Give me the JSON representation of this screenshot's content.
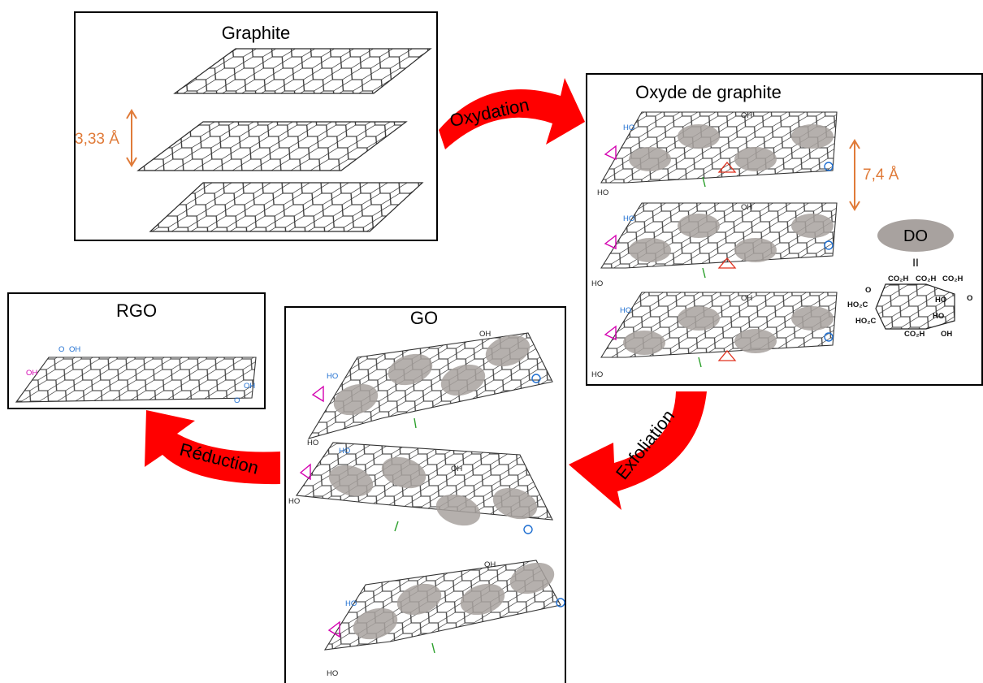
{
  "boxes": {
    "graphite": {
      "title": "Graphite",
      "spacing_label": "3,33 Å"
    },
    "graphite_oxide": {
      "title": "Oxyde de graphite",
      "spacing_label": "7,4 Å"
    },
    "go": {
      "title": "GO"
    },
    "rgo": {
      "title": "RGO"
    }
  },
  "arrows": {
    "oxidation": "Oxydation",
    "exfoliation": "Exfoliation",
    "reduction": "Réduction"
  },
  "legend": {
    "ellipse_label": "DO",
    "equals": "II",
    "groups": [
      "CO₂H",
      "CO₂H",
      "CO₂H",
      "HO₂C",
      "HO₂C",
      "CO₂H",
      "HO",
      "HO",
      "O",
      "O",
      "OH"
    ]
  },
  "groups": {
    "oh": "OH",
    "ho": "HO",
    "o": "O"
  },
  "colors": {
    "arrow": "#ff0000",
    "spacing": "#e07b39",
    "blue_group": "#1f6fd1",
    "red_group": "#e0301e",
    "magenta_group": "#d400b0",
    "green_group": "#2ca02c",
    "do_ellipse": "#a8a29f"
  }
}
